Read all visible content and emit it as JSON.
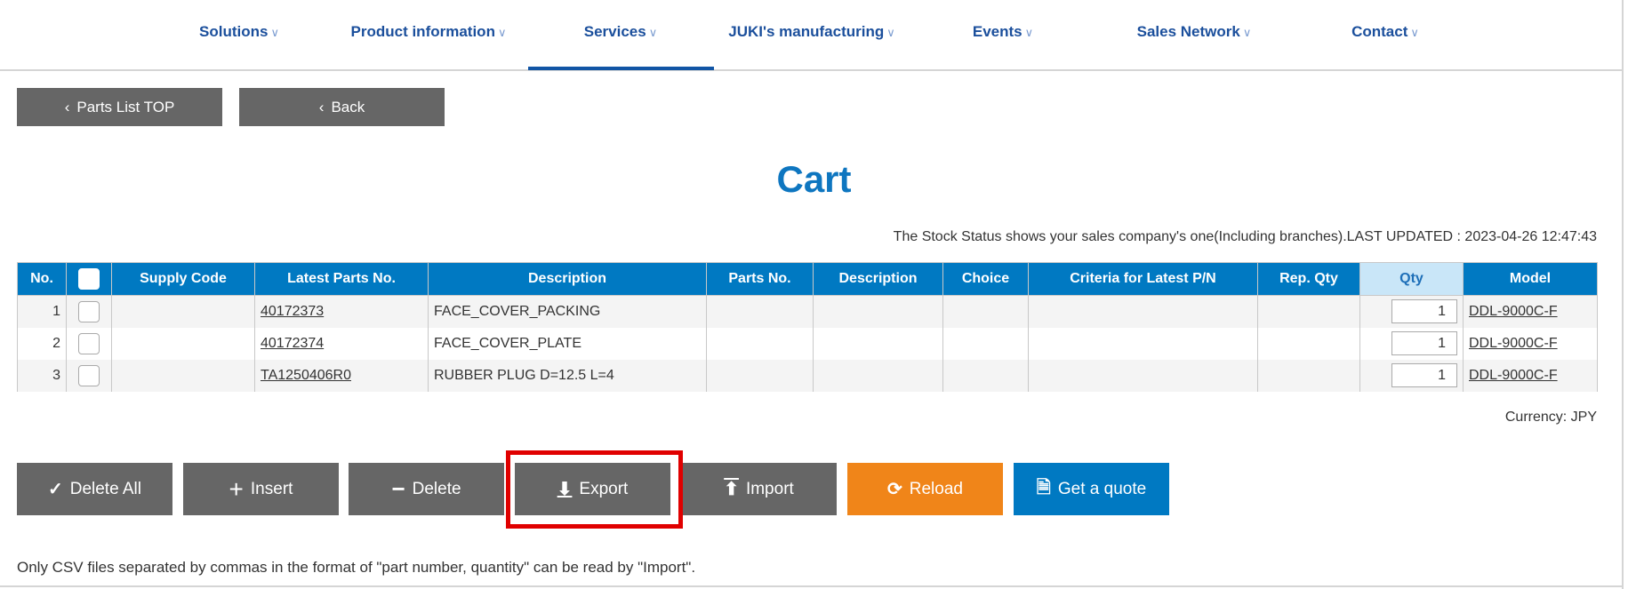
{
  "nav": {
    "items": [
      "Solutions",
      "Product information",
      "Services",
      "JUKI's manufacturing",
      "Events",
      "Sales Network",
      "Contact"
    ],
    "active": "Services",
    "accent": "#1155a5"
  },
  "top_buttons": {
    "parts_list_top": "Parts List TOP",
    "back": "Back"
  },
  "page_title": "Cart",
  "stock_status": "The Stock Status shows your sales company's one(Including branches).LAST UPDATED : 2023-04-26 12:47:43",
  "table": {
    "headers": [
      "No.",
      "",
      "Supply Code",
      "Latest Parts No.",
      "Description",
      "Parts No.",
      "Description",
      "Choice",
      "Criteria for Latest P/N",
      "Rep. Qty",
      "Qty",
      "Model"
    ],
    "rows": [
      {
        "no": "1",
        "supply_code": "",
        "latest_parts_no": "40172373",
        "description": "FACE_COVER_PACKING",
        "parts_no": "",
        "description2": "",
        "choice": "",
        "criteria": "",
        "rep_qty": "",
        "qty": "1",
        "model": "DDL-9000C-F"
      },
      {
        "no": "2",
        "supply_code": "",
        "latest_parts_no": "40172374",
        "description": "FACE_COVER_PLATE",
        "parts_no": "",
        "description2": "",
        "choice": "",
        "criteria": "",
        "rep_qty": "",
        "qty": "1",
        "model": "DDL-9000C-F"
      },
      {
        "no": "3",
        "supply_code": "",
        "latest_parts_no": "TA1250406R0",
        "description": "RUBBER PLUG D=12.5 L=4",
        "parts_no": "",
        "description2": "",
        "choice": "",
        "criteria": "",
        "rep_qty": "",
        "qty": "1",
        "model": "DDL-9000C-F"
      }
    ]
  },
  "currency": "Currency: JPY",
  "actions": {
    "delete_all": "Delete All",
    "insert": "Insert",
    "delete": "Delete",
    "export": "Export",
    "import": "Import",
    "reload": "Reload",
    "get_quote": "Get a quote"
  },
  "colors": {
    "header": "#0079c2",
    "button_gray": "#666666",
    "reload": "#f08519",
    "quote": "#0079c2",
    "highlight": "#e00000"
  },
  "note": "Only CSV files separated by commas in the format of \"part number, quantity\" can be read by \"Import\"."
}
